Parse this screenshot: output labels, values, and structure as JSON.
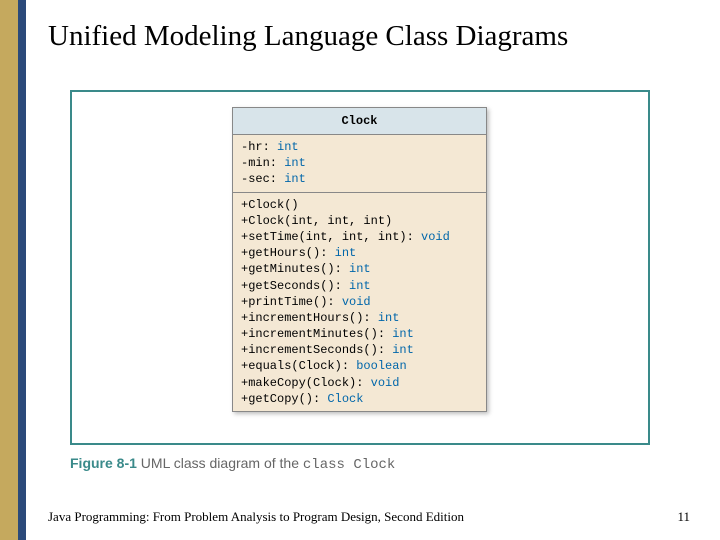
{
  "slide": {
    "title": "Unified Modeling Language Class Diagrams",
    "footer_text": "Java Programming: From Problem Analysis to Program Design, Second Edition",
    "page_number": "11"
  },
  "caption": {
    "figure_label": "Figure 8-1",
    "text_part1": "UML class diagram of the ",
    "mono_part": "class Clock"
  },
  "uml": {
    "class_name": "Clock",
    "attributes": [
      {
        "sig": "-hr:",
        "type": "int"
      },
      {
        "sig": "-min:",
        "type": "int"
      },
      {
        "sig": "-sec:",
        "type": "int"
      }
    ],
    "methods": [
      {
        "sig": "+Clock()",
        "type": ""
      },
      {
        "sig": "+Clock(int, int, int)",
        "type": ""
      },
      {
        "sig": "+setTime(int, int, int):",
        "type": "void"
      },
      {
        "sig": "+getHours():",
        "type": "int"
      },
      {
        "sig": "+getMinutes():",
        "type": "int"
      },
      {
        "sig": "+getSeconds():",
        "type": "int"
      },
      {
        "sig": "+printTime():",
        "type": "void"
      },
      {
        "sig": "+incrementHours():",
        "type": "int"
      },
      {
        "sig": "+incrementMinutes():",
        "type": "int"
      },
      {
        "sig": "+incrementSeconds():",
        "type": "int"
      },
      {
        "sig": "+equals(Clock):",
        "type": "boolean"
      },
      {
        "sig": "+makeCopy(Clock):",
        "type": "void"
      },
      {
        "sig": "+getCopy():",
        "type": "Clock"
      }
    ]
  },
  "colors": {
    "gold_border": "#c5a95e",
    "blue_border": "#2b4a7a",
    "frame_border": "#3a8a8a",
    "uml_header_bg": "#d8e4ea",
    "uml_body_bg": "#f4e8d4",
    "type_color": "#0066aa"
  }
}
